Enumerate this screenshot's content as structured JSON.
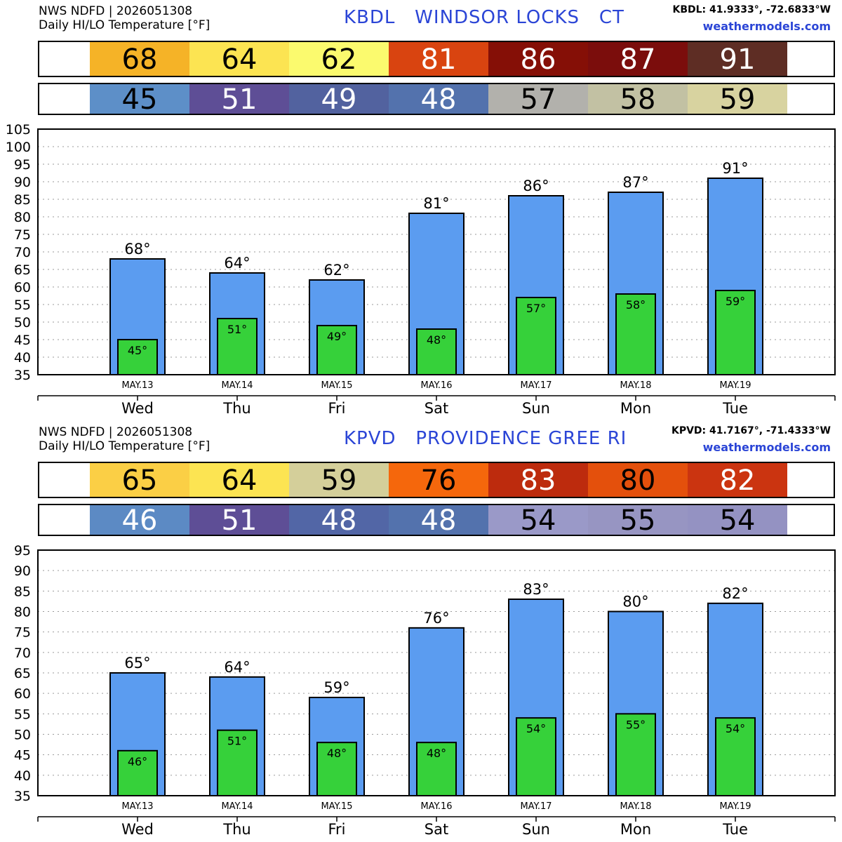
{
  "panels": [
    {
      "header": {
        "line1": "NWS NDFD | 2026051308",
        "line2": "Daily HI/LO Temperature [°F]",
        "title": "KBDL   WINDSOR LOCKS   CT",
        "coords": "KBDL: 41.9333°, -72.6833°W",
        "site": "weathermodels.com"
      },
      "hi_strip": [
        {
          "text": "68",
          "bg": "#f5b327",
          "fg": "#000000"
        },
        {
          "text": "64",
          "bg": "#fce452",
          "fg": "#000000"
        },
        {
          "text": "62",
          "bg": "#fbfa6e",
          "fg": "#000000"
        },
        {
          "text": "81",
          "bg": "#d94410",
          "fg": "#ffffff"
        },
        {
          "text": "86",
          "bg": "#850f06",
          "fg": "#ffffff"
        },
        {
          "text": "87",
          "bg": "#7b0d0c",
          "fg": "#ffffff"
        },
        {
          "text": "91",
          "bg": "#5e2d24",
          "fg": "#ffffff"
        }
      ],
      "lo_strip": [
        {
          "text": "45",
          "bg": "#5d8fc8",
          "fg": "#000000"
        },
        {
          "text": "51",
          "bg": "#5e4e96",
          "fg": "#ffffff"
        },
        {
          "text": "49",
          "bg": "#52629f",
          "fg": "#ffffff"
        },
        {
          "text": "48",
          "bg": "#5372ad",
          "fg": "#ffffff"
        },
        {
          "text": "57",
          "bg": "#b2b1ac",
          "fg": "#000000"
        },
        {
          "text": "58",
          "bg": "#c2c1a3",
          "fg": "#000000"
        },
        {
          "text": "59",
          "bg": "#d8d3a0",
          "fg": "#000000"
        }
      ],
      "chart_data": {
        "type": "bar",
        "categories": [
          "Wed",
          "Thu",
          "Fri",
          "Sat",
          "Sun",
          "Mon",
          "Tue"
        ],
        "dates": [
          "MAY.13",
          "MAY.14",
          "MAY.15",
          "MAY.16",
          "MAY.17",
          "MAY.18",
          "MAY.19"
        ],
        "series": [
          {
            "values": [
              68,
              64,
              62,
              81,
              86,
              87,
              91
            ],
            "labels": [
              "68°",
              "64°",
              "62°",
              "81°",
              "86°",
              "87°",
              "91°"
            ],
            "color": "#5b9cf0"
          },
          {
            "values": [
              45,
              51,
              49,
              48,
              57,
              58,
              59
            ],
            "labels": [
              "45°",
              "51°",
              "49°",
              "48°",
              "57°",
              "58°",
              "59°"
            ],
            "color": "#36d13a"
          }
        ],
        "ylim": [
          35,
          105
        ],
        "yticks": [
          35,
          40,
          45,
          50,
          55,
          60,
          65,
          70,
          75,
          80,
          85,
          90,
          95,
          100,
          105
        ],
        "grid": true
      }
    },
    {
      "header": {
        "line1": "NWS NDFD | 2026051308",
        "line2": "Daily HI/LO Temperature [°F]",
        "title": "KPVD   PROVIDENCE GREE RI",
        "coords": "KPVD: 41.7167°, -71.4333°W",
        "site": "weathermodels.com"
      },
      "hi_strip": [
        {
          "text": "65",
          "bg": "#fbcf45",
          "fg": "#000000"
        },
        {
          "text": "64",
          "bg": "#fce452",
          "fg": "#000000"
        },
        {
          "text": "59",
          "bg": "#d4cf9a",
          "fg": "#000000"
        },
        {
          "text": "76",
          "bg": "#f5670c",
          "fg": "#000000"
        },
        {
          "text": "83",
          "bg": "#bd2b0d",
          "fg": "#ffffff"
        },
        {
          "text": "80",
          "bg": "#e4500c",
          "fg": "#000000"
        },
        {
          "text": "82",
          "bg": "#cb3410",
          "fg": "#ffffff"
        }
      ],
      "lo_strip": [
        {
          "text": "46",
          "bg": "#5c8ac4",
          "fg": "#ffffff"
        },
        {
          "text": "51",
          "bg": "#5e4e96",
          "fg": "#ffffff"
        },
        {
          "text": "48",
          "bg": "#5266a6",
          "fg": "#ffffff"
        },
        {
          "text": "48",
          "bg": "#5372ad",
          "fg": "#ffffff"
        },
        {
          "text": "54",
          "bg": "#9a99c8",
          "fg": "#000000"
        },
        {
          "text": "55",
          "bg": "#9795c2",
          "fg": "#000000"
        },
        {
          "text": "54",
          "bg": "#9492c2",
          "fg": "#000000"
        }
      ],
      "chart_data": {
        "type": "bar",
        "categories": [
          "Wed",
          "Thu",
          "Fri",
          "Sat",
          "Sun",
          "Mon",
          "Tue"
        ],
        "dates": [
          "MAY.13",
          "MAY.14",
          "MAY.15",
          "MAY.16",
          "MAY.17",
          "MAY.18",
          "MAY.19"
        ],
        "series": [
          {
            "values": [
              65,
              64,
              59,
              76,
              83,
              80,
              82
            ],
            "labels": [
              "65°",
              "64°",
              "59°",
              "76°",
              "83°",
              "80°",
              "82°"
            ],
            "color": "#5b9cf0"
          },
          {
            "values": [
              46,
              51,
              48,
              48,
              54,
              55,
              54
            ],
            "labels": [
              "46°",
              "51°",
              "48°",
              "48°",
              "54°",
              "55°",
              "54°"
            ],
            "color": "#36d13a"
          }
        ],
        "ylim": [
          35,
          95
        ],
        "yticks": [
          35,
          40,
          45,
          50,
          55,
          60,
          65,
          70,
          75,
          80,
          85,
          90,
          95
        ],
        "grid": true
      }
    }
  ]
}
